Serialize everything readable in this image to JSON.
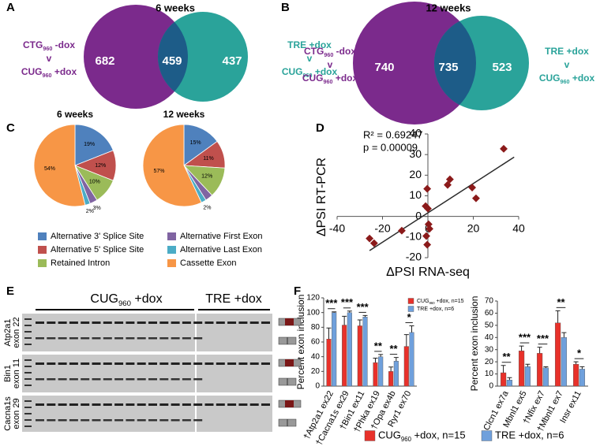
{
  "panel_labels": [
    "A",
    "B",
    "C",
    "D",
    "E",
    "F"
  ],
  "gel": {
    "groups": [
      "CUG960 +dox",
      "TRE +dox"
    ],
    "rows": [
      [
        "Atp2a1",
        "exon 22"
      ],
      [
        "Bin1",
        "exon 11"
      ],
      [
        "Cacna1s",
        "exon 29"
      ]
    ]
  },
  "chart_data": [
    {
      "type": "venn",
      "title": "6 weeks",
      "left_label": [
        "CTG960 -dox",
        "v",
        "CUG960 +dox"
      ],
      "right_label": [
        "TRE +dox",
        "v",
        "CUG960 +dox"
      ],
      "values": [
        682,
        459,
        437
      ],
      "colors": [
        "#7b2a8c",
        "#1d5c88",
        "#2aa39a"
      ]
    },
    {
      "type": "venn",
      "title": "12 weeks",
      "left_label": [
        "CTG960 -dox",
        "v",
        "CUG960 +dox"
      ],
      "right_label": [
        "TRE +dox",
        "v",
        "CUG960 +dox"
      ],
      "values": [
        740,
        735,
        523
      ],
      "colors": [
        "#7b2a8c",
        "#1d5c88",
        "#2aa39a"
      ]
    },
    {
      "type": "pie",
      "title": "6 weeks",
      "categories": [
        "Alternative 3' Splice Site",
        "Alternative 5' Splice Site",
        "Retained Intron",
        "Alternative First Exon",
        "Alternative Last Exon",
        "Cassette Exon"
      ],
      "values": [
        19,
        12,
        10,
        3,
        2,
        54
      ],
      "value_labels": [
        "19%",
        "12%",
        "10%",
        "3%",
        "2%",
        "54%"
      ],
      "colors": [
        "#4f81bd",
        "#c0504d",
        "#9bbb59",
        "#8064a2",
        "#4bacc6",
        "#f79646"
      ]
    },
    {
      "type": "pie",
      "title": "12 weeks",
      "values": [
        15,
        11,
        12,
        3,
        2,
        57
      ],
      "value_labels": [
        "15%",
        "11%",
        "12%",
        null,
        "2%",
        "57%"
      ],
      "colors": [
        "#4f81bd",
        "#c0504d",
        "#9bbb59",
        "#8064a2",
        "#4bacc6",
        "#f79646"
      ]
    },
    {
      "type": "scatter",
      "xlabel": "ΔPSI RNA-seq",
      "ylabel": "ΔPSI RT-PCR",
      "annotations": [
        "R² = 0.69247",
        "p = 0.00009"
      ],
      "x": [
        -25.7,
        -23.7,
        -11.5,
        -1,
        0,
        -0.3,
        0.3,
        0.7,
        -0.3,
        -0.7,
        9.7,
        8.7,
        19.5,
        21.2,
        33.4
      ],
      "values": [
        -10.7,
        -13,
        -6.9,
        5,
        3.8,
        13.4,
        -3.8,
        -6,
        -13.7,
        -9.5,
        18,
        15.3,
        14,
        8.8,
        32.8
      ],
      "color": "#8b1a1a",
      "xlim": [
        -40,
        40
      ],
      "ylim": [
        -20,
        40
      ],
      "xticks": [
        -40,
        -20,
        0,
        20,
        40
      ],
      "yticks": [
        -20,
        -10,
        0,
        10,
        20,
        30,
        40
      ],
      "trendline": true
    },
    {
      "type": "bar",
      "ylabel": "Percent exon inclusion",
      "legend": "upper right",
      "categories": [
        "†Atp2a1 ex22",
        "†Cacna1s ex29",
        "†Bin1 ex11",
        "†Phka ex19",
        "†Opa ex4b",
        "Ryr1 ex70"
      ],
      "series": [
        {
          "name": "CUG960 +dox, n=15",
          "color": "#e8312a",
          "values": [
            64,
            83,
            82,
            32,
            20,
            54
          ],
          "errors": [
            15,
            12,
            8,
            6,
            6,
            16
          ]
        },
        {
          "name": "TRE +dox, n=6",
          "color": "#6fa0dc",
          "values": [
            100,
            100,
            94,
            40,
            34,
            73
          ],
          "errors": [
            1,
            2,
            2,
            3,
            5,
            9
          ]
        }
      ],
      "annotations": [
        "***",
        "***",
        "***",
        "**",
        "**",
        "*"
      ],
      "ylim": [
        0,
        120
      ],
      "yticks": [
        0,
        20,
        40,
        60,
        80,
        100,
        120
      ]
    },
    {
      "type": "bar",
      "ylabel": "Percent exon inclusion",
      "legend": "bottom",
      "categories": [
        "Clcn1 ex7a",
        "Mbnl1 ex5",
        "†Nfix ex7",
        "†Mbnl1 ex7",
        "Insr ex11"
      ],
      "series": [
        {
          "name": "CUG960 +dox, n=15",
          "color": "#e8312a",
          "values": [
            11,
            29,
            27,
            52,
            18
          ],
          "errors": [
            6,
            4,
            5,
            10,
            2
          ]
        },
        {
          "name": "TRE +dox, n=6",
          "color": "#6fa0dc",
          "values": [
            5,
            16,
            15,
            40,
            14
          ],
          "errors": [
            2,
            2,
            1,
            4,
            2
          ]
        }
      ],
      "annotations": [
        "**",
        "***",
        "***",
        "**",
        "*"
      ],
      "ylim": [
        0,
        70
      ],
      "yticks": [
        0,
        10,
        20,
        30,
        40,
        50,
        60,
        70
      ]
    }
  ]
}
